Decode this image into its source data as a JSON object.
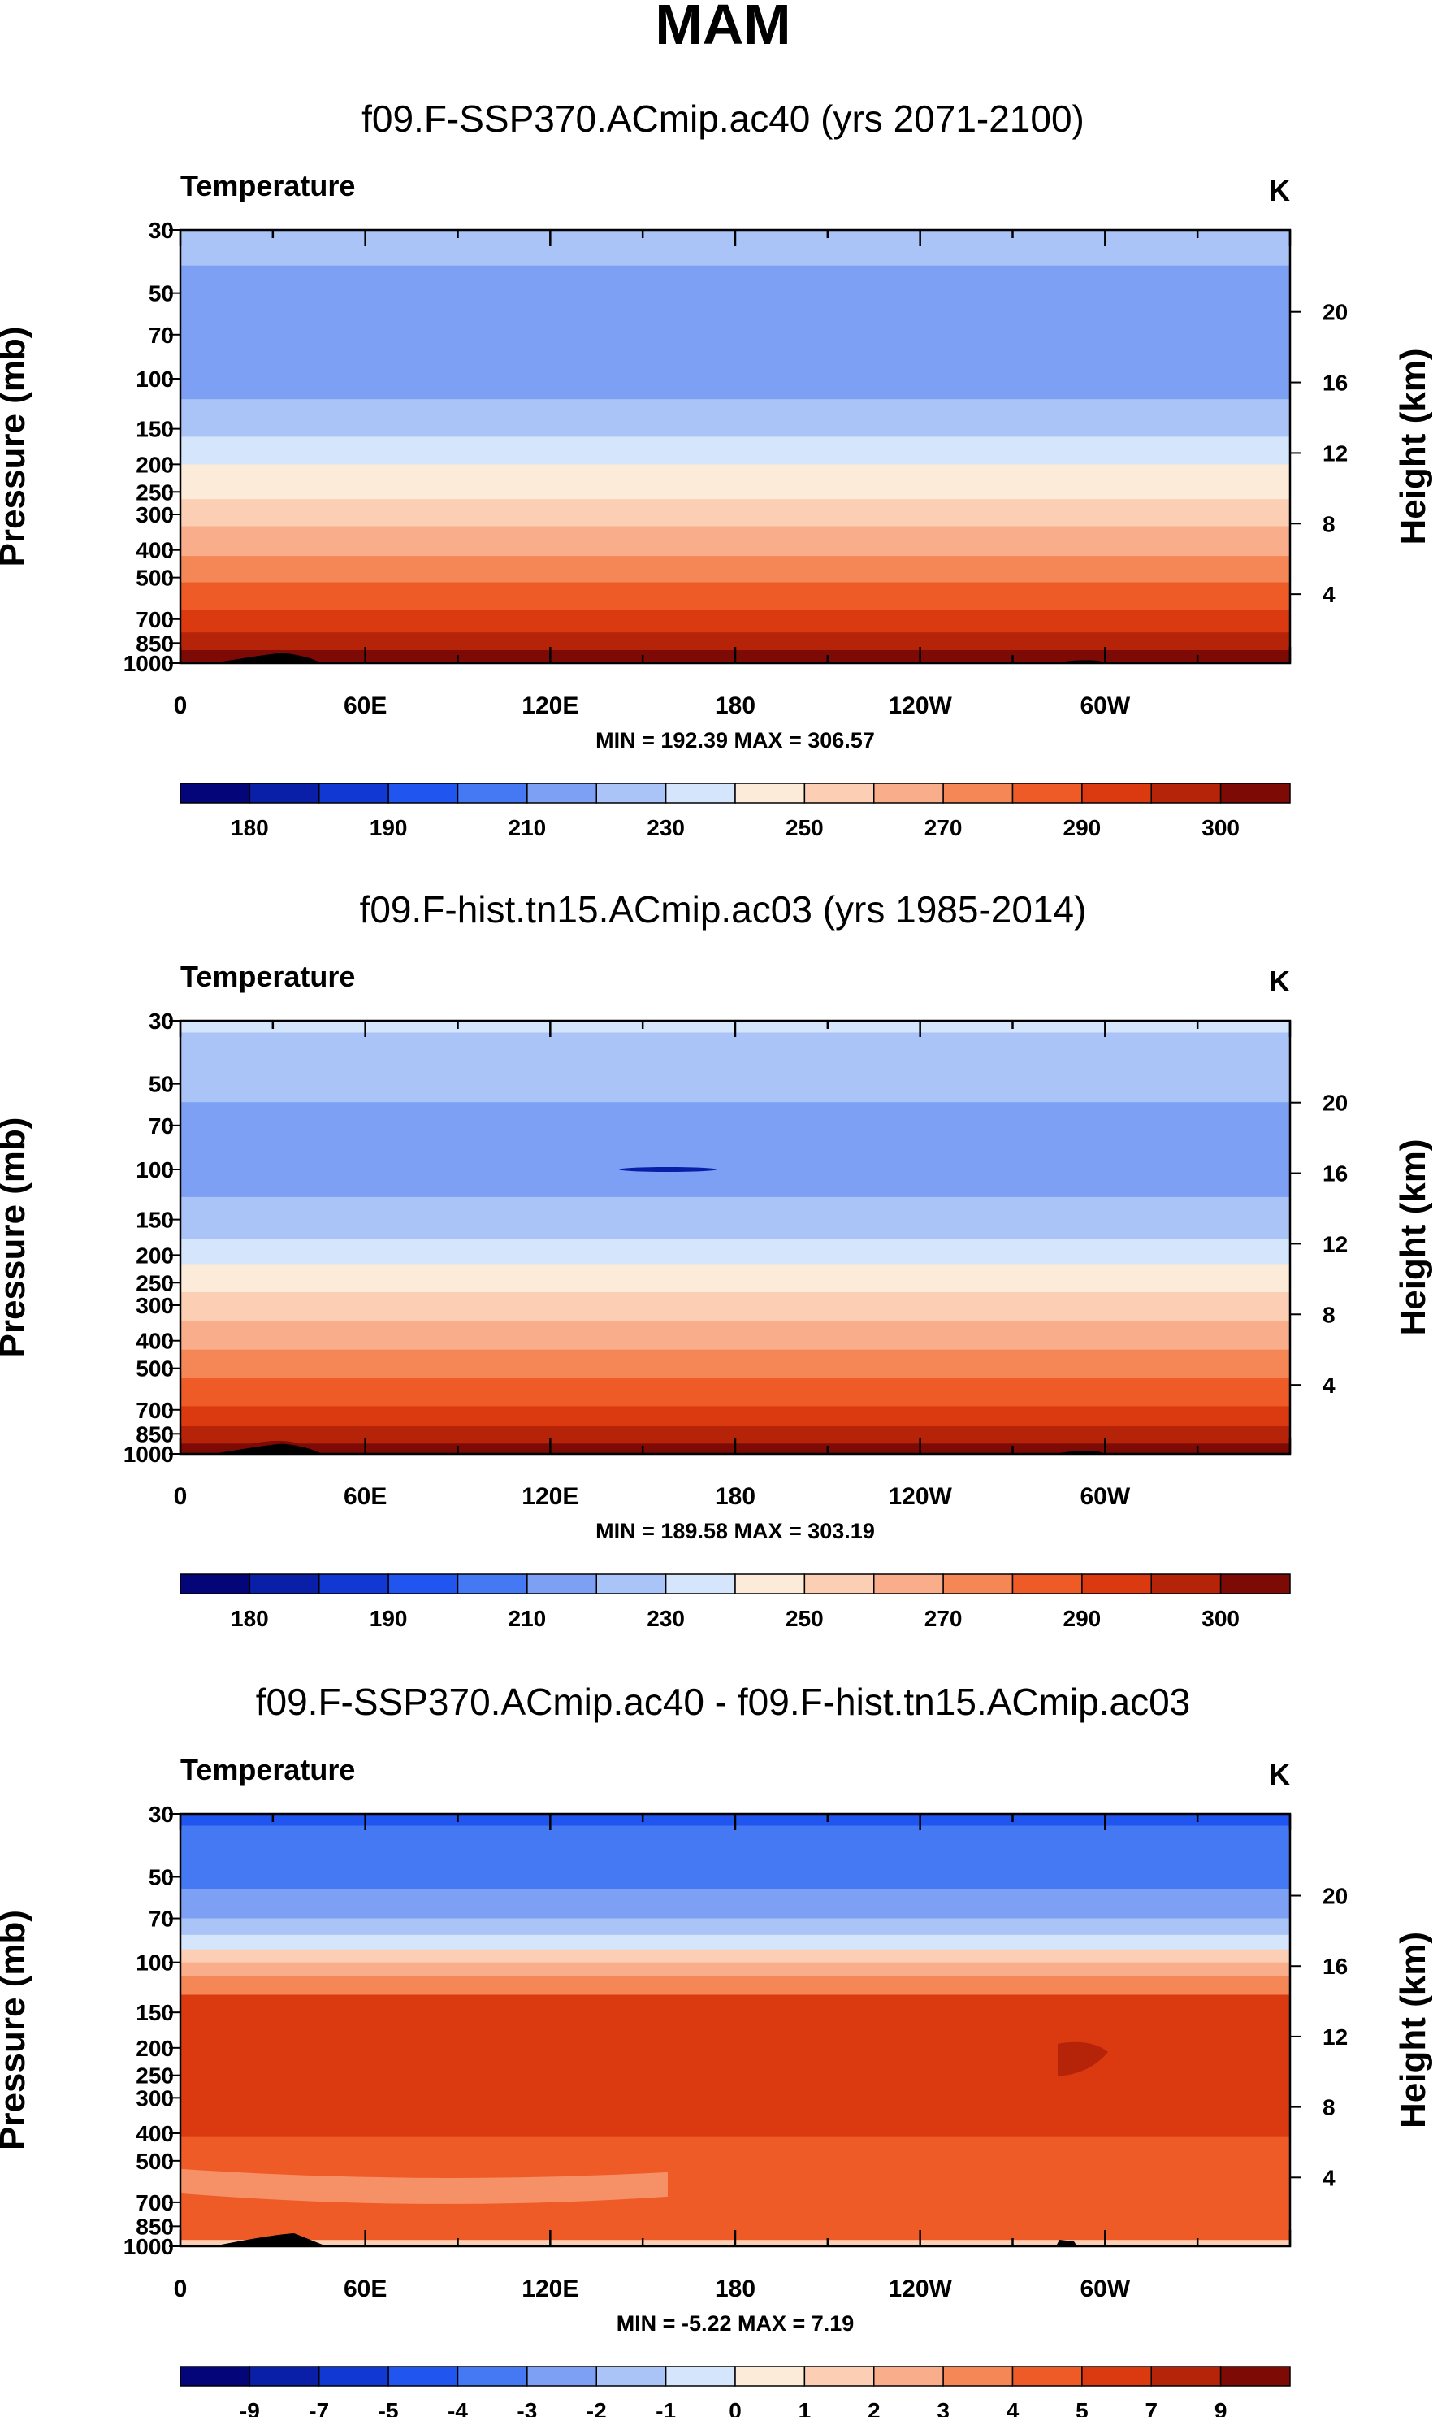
{
  "page_title": "MAM",
  "chart_data": [
    {
      "type": "heatmap",
      "title": "f09.F-SSP370.ACmip.ac40 (yrs 2071-2100)",
      "variable": "Temperature",
      "units": "K",
      "ylabel_left": "Pressure (mb)",
      "ylabel_right": "Height (km)",
      "x_ticks": [
        "0",
        "60E",
        "120E",
        "180",
        "120W",
        "60W"
      ],
      "pressure_ticks": [
        30,
        50,
        70,
        100,
        150,
        200,
        250,
        300,
        400,
        500,
        700,
        850,
        1000
      ],
      "height_ticks": [
        4,
        8,
        12,
        16,
        20
      ],
      "minmax": "MIN = 192.39   MAX = 306.57",
      "min": 192.39,
      "max": 306.57,
      "colorbar_labels": [
        "180",
        "190",
        "210",
        "230",
        "250",
        "270",
        "290",
        "300"
      ],
      "levels_approx": [
        {
          "p_top": 30,
          "p_bottom": 40,
          "value": 210
        },
        {
          "p_top": 40,
          "p_bottom": 118,
          "value": 200
        },
        {
          "p_top": 118,
          "p_bottom": 160,
          "value": 215
        },
        {
          "p_top": 160,
          "p_bottom": 200,
          "value": 220
        },
        {
          "p_top": 200,
          "p_bottom": 265,
          "value": 230
        },
        {
          "p_top": 265,
          "p_bottom": 330,
          "value": 245
        },
        {
          "p_top": 330,
          "p_bottom": 420,
          "value": 255
        },
        {
          "p_top": 420,
          "p_bottom": 520,
          "value": 265
        },
        {
          "p_top": 520,
          "p_bottom": 650,
          "value": 275
        },
        {
          "p_top": 650,
          "p_bottom": 780,
          "value": 285
        },
        {
          "p_top": 780,
          "p_bottom": 900,
          "value": 292
        },
        {
          "p_top": 900,
          "p_bottom": 970,
          "value": 297
        },
        {
          "p_top": 970,
          "p_bottom": 1000,
          "value": 302
        }
      ]
    },
    {
      "type": "heatmap",
      "title": "f09.F-hist.tn15.ACmip.ac03 (yrs 1985-2014)",
      "variable": "Temperature",
      "units": "K",
      "ylabel_left": "Pressure (mb)",
      "ylabel_right": "Height (km)",
      "x_ticks": [
        "0",
        "60E",
        "120E",
        "180",
        "120W",
        "60W"
      ],
      "pressure_ticks": [
        30,
        50,
        70,
        100,
        150,
        200,
        250,
        300,
        400,
        500,
        700,
        850,
        1000
      ],
      "height_ticks": [
        4,
        8,
        12,
        16,
        20
      ],
      "minmax": "MIN = 189.58   MAX = 303.19",
      "min": 189.58,
      "max": 303.19,
      "colorbar_labels": [
        "180",
        "190",
        "210",
        "230",
        "250",
        "270",
        "290",
        "300"
      ],
      "levels_approx": [
        {
          "p_top": 30,
          "p_bottom": 33,
          "value": 220
        },
        {
          "p_top": 33,
          "p_bottom": 58,
          "value": 210
        },
        {
          "p_top": 58,
          "p_bottom": 125,
          "value": 200
        },
        {
          "p_top": 125,
          "p_bottom": 175,
          "value": 215
        },
        {
          "p_top": 175,
          "p_bottom": 215,
          "value": 220
        },
        {
          "p_top": 215,
          "p_bottom": 270,
          "value": 230
        },
        {
          "p_top": 270,
          "p_bottom": 340,
          "value": 240
        },
        {
          "p_top": 340,
          "p_bottom": 430,
          "value": 255
        },
        {
          "p_top": 430,
          "p_bottom": 540,
          "value": 265
        },
        {
          "p_top": 540,
          "p_bottom": 680,
          "value": 275
        },
        {
          "p_top": 680,
          "p_bottom": 800,
          "value": 285
        },
        {
          "p_top": 800,
          "p_bottom": 920,
          "value": 292
        },
        {
          "p_top": 920,
          "p_bottom": 1000,
          "value": 297
        }
      ]
    },
    {
      "type": "heatmap",
      "title": "f09.F-SSP370.ACmip.ac40 - f09.F-hist.tn15.ACmip.ac03",
      "variable": "Temperature",
      "units": "K",
      "ylabel_left": "Pressure (mb)",
      "ylabel_right": "Height (km)",
      "x_ticks": [
        "0",
        "60E",
        "120E",
        "180",
        "120W",
        "60W"
      ],
      "pressure_ticks": [
        30,
        50,
        70,
        100,
        150,
        200,
        250,
        300,
        400,
        500,
        700,
        850,
        1000
      ],
      "height_ticks": [
        4,
        8,
        12,
        16,
        20
      ],
      "minmax": "MIN =  -5.22   MAX =    7.19",
      "min": -5.22,
      "max": 7.19,
      "colorbar_labels": [
        "-9",
        "-7",
        "-5",
        "-4",
        "-3",
        "-2",
        "-1",
        "0",
        "1",
        "2",
        "3",
        "4",
        "5",
        "7",
        "9"
      ],
      "levels_approx": [
        {
          "p_top": 30,
          "p_bottom": 33,
          "value": -5
        },
        {
          "p_top": 33,
          "p_bottom": 55,
          "value": -4
        },
        {
          "p_top": 55,
          "p_bottom": 70,
          "value": -3
        },
        {
          "p_top": 70,
          "p_bottom": 80,
          "value": -2
        },
        {
          "p_top": 80,
          "p_bottom": 90,
          "value": -1
        },
        {
          "p_top": 90,
          "p_bottom": 100,
          "value": 1
        },
        {
          "p_top": 100,
          "p_bottom": 112,
          "value": 2
        },
        {
          "p_top": 112,
          "p_bottom": 130,
          "value": 3
        },
        {
          "p_top": 130,
          "p_bottom": 410,
          "value": 5
        },
        {
          "p_top": 410,
          "p_bottom": 950,
          "value": 4
        },
        {
          "p_top": 950,
          "p_bottom": 1000,
          "value": 1
        }
      ]
    }
  ]
}
